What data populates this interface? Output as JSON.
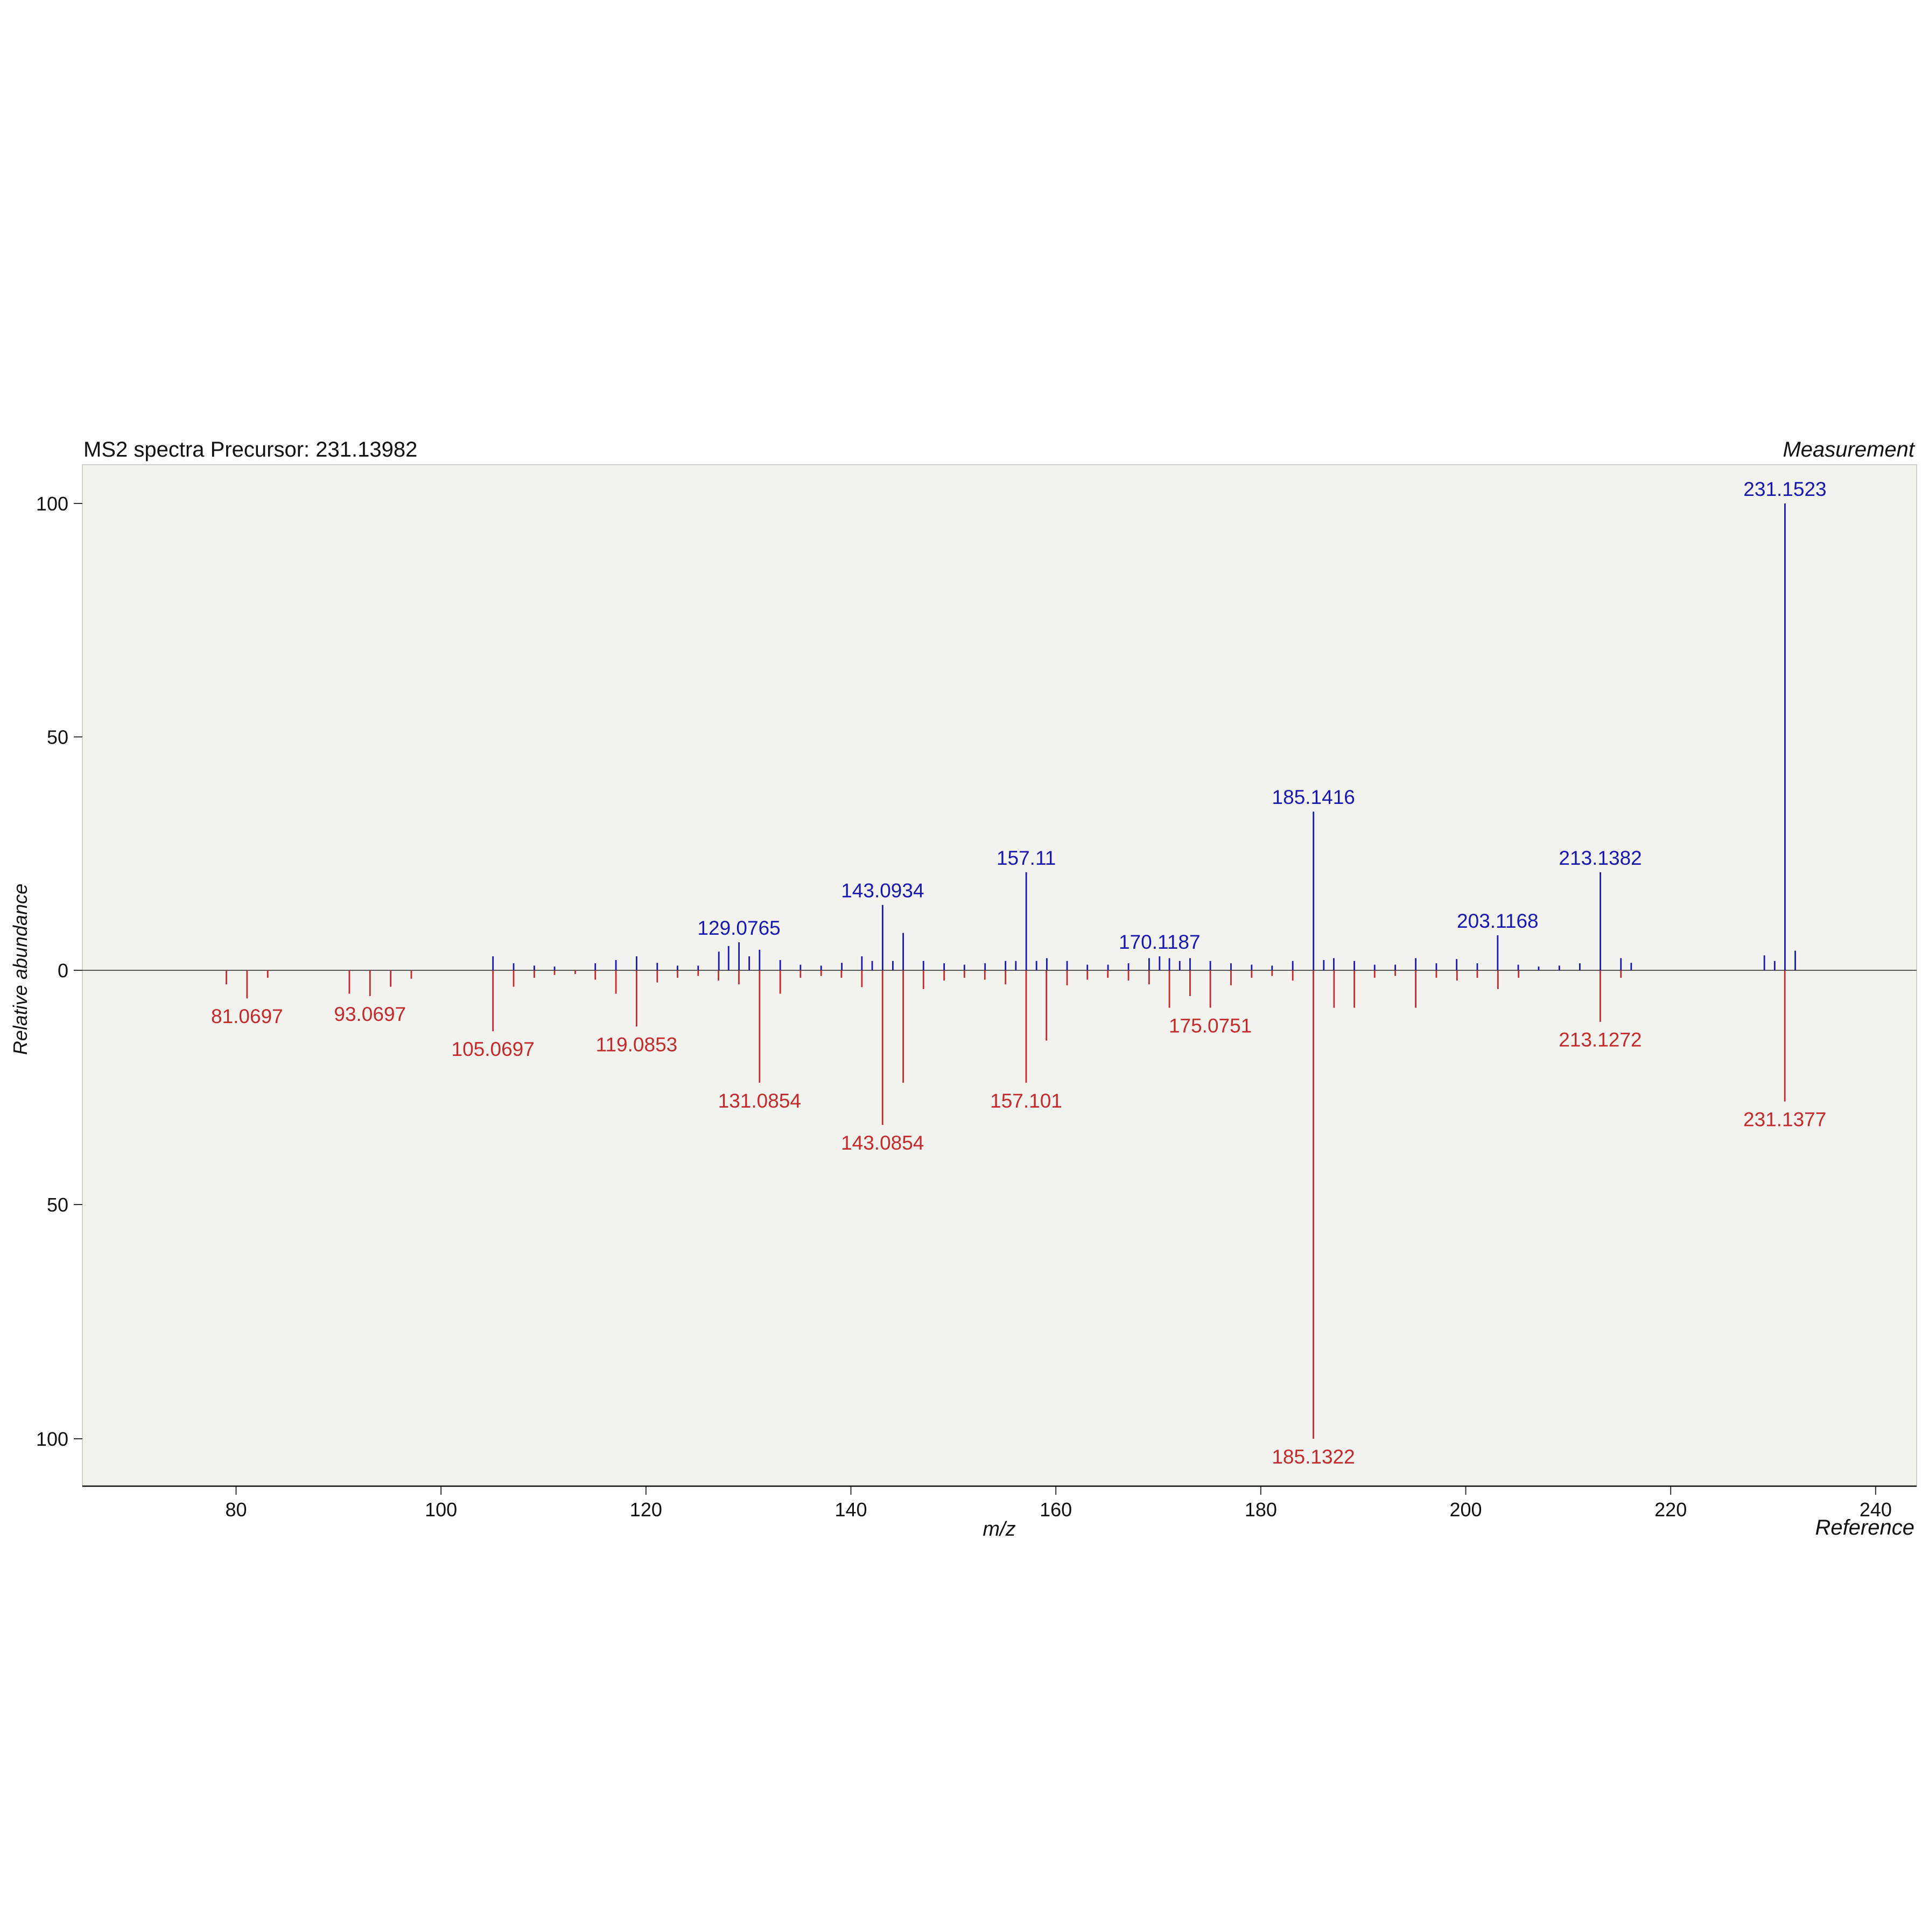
{
  "chart": {
    "title": "MS2 spectra Precursor: 231.13982",
    "top_label": "Measurement",
    "bottom_label": "Reference",
    "xlabel": "m/z",
    "ylabel": "Relative abundance"
  },
  "chart_data": {
    "type": "bar",
    "style": "mirrored stem plot (MS2 head-to-tail mass spectrum)",
    "title": "MS2 spectra Precursor: 231.13982",
    "xlabel": "m/z",
    "ylabel": "Relative abundance",
    "x_range": [
      65,
      244
    ],
    "y_range": [
      -100,
      100
    ],
    "x_ticks": [
      80,
      100,
      120,
      140,
      160,
      180,
      200,
      220,
      240
    ],
    "y_ticks": [
      {
        "value": 100,
        "label": "100"
      },
      {
        "value": 50,
        "label": "50"
      },
      {
        "value": 0,
        "label": "0"
      },
      {
        "value": -50,
        "label": "50"
      },
      {
        "value": -100,
        "label": "100"
      }
    ],
    "grid": false,
    "legend": {
      "top_right": "Measurement",
      "bottom_right": "Reference"
    },
    "colors": {
      "measurement": "#1717b2",
      "reference": "#c42a2a"
    },
    "series": [
      {
        "name": "Measurement",
        "direction": "up",
        "color_key": "measurement",
        "peaks": [
          {
            "mz": 105.07,
            "intensity": 3
          },
          {
            "mz": 107.085,
            "intensity": 1.5
          },
          {
            "mz": 109.101,
            "intensity": 1
          },
          {
            "mz": 111.08,
            "intensity": 0.8
          },
          {
            "mz": 115.054,
            "intensity": 1.5
          },
          {
            "mz": 117.07,
            "intensity": 2.2
          },
          {
            "mz": 119.085,
            "intensity": 3
          },
          {
            "mz": 121.101,
            "intensity": 1.6
          },
          {
            "mz": 123.08,
            "intensity": 1
          },
          {
            "mz": 125.096,
            "intensity": 1
          },
          {
            "mz": 127.112,
            "intensity": 4
          },
          {
            "mz": 128.062,
            "intensity": 5.2
          },
          {
            "mz": 129.0765,
            "intensity": 6,
            "label": "129.0765"
          },
          {
            "mz": 130.078,
            "intensity": 3
          },
          {
            "mz": 131.085,
            "intensity": 4.4
          },
          {
            "mz": 133.101,
            "intensity": 2.2
          },
          {
            "mz": 135.08,
            "intensity": 1.2
          },
          {
            "mz": 137.096,
            "intensity": 1
          },
          {
            "mz": 139.112,
            "intensity": 1.6
          },
          {
            "mz": 141.07,
            "intensity": 3
          },
          {
            "mz": 142.078,
            "intensity": 2
          },
          {
            "mz": 143.0934,
            "intensity": 14,
            "label": "143.0934"
          },
          {
            "mz": 144.093,
            "intensity": 2
          },
          {
            "mz": 145.101,
            "intensity": 8
          },
          {
            "mz": 147.08,
            "intensity": 2
          },
          {
            "mz": 149.096,
            "intensity": 1.5
          },
          {
            "mz": 151.075,
            "intensity": 1.2
          },
          {
            "mz": 153.091,
            "intensity": 1.5
          },
          {
            "mz": 155.086,
            "intensity": 2
          },
          {
            "mz": 156.093,
            "intensity": 2
          },
          {
            "mz": 157.11,
            "intensity": 21,
            "label": "157.11"
          },
          {
            "mz": 158.109,
            "intensity": 2
          },
          {
            "mz": 159.117,
            "intensity": 2.6
          },
          {
            "mz": 161.096,
            "intensity": 2
          },
          {
            "mz": 163.075,
            "intensity": 1.2
          },
          {
            "mz": 165.091,
            "intensity": 1.2
          },
          {
            "mz": 167.086,
            "intensity": 1.5
          },
          {
            "mz": 169.101,
            "intensity": 2.6
          },
          {
            "mz": 170.1187,
            "intensity": 3,
            "label": "170.1187"
          },
          {
            "mz": 171.08,
            "intensity": 2.6
          },
          {
            "mz": 172.088,
            "intensity": 2
          },
          {
            "mz": 173.096,
            "intensity": 2.6
          },
          {
            "mz": 175.075,
            "intensity": 2
          },
          {
            "mz": 177.091,
            "intensity": 1.5
          },
          {
            "mz": 179.107,
            "intensity": 1.2
          },
          {
            "mz": 181.101,
            "intensity": 1
          },
          {
            "mz": 183.117,
            "intensity": 2
          },
          {
            "mz": 185.1416,
            "intensity": 34,
            "label": "185.1416"
          },
          {
            "mz": 186.145,
            "intensity": 2.2
          },
          {
            "mz": 187.123,
            "intensity": 2.6
          },
          {
            "mz": 189.127,
            "intensity": 2
          },
          {
            "mz": 191.107,
            "intensity": 1.2
          },
          {
            "mz": 193.122,
            "intensity": 1.2
          },
          {
            "mz": 195.117,
            "intensity": 2.6
          },
          {
            "mz": 197.132,
            "intensity": 1.5
          },
          {
            "mz": 199.112,
            "intensity": 2.4
          },
          {
            "mz": 201.127,
            "intensity": 1.5
          },
          {
            "mz": 203.1168,
            "intensity": 7.5,
            "label": "203.1168"
          },
          {
            "mz": 205.122,
            "intensity": 1.2
          },
          {
            "mz": 207.117,
            "intensity": 0.8
          },
          {
            "mz": 209.132,
            "intensity": 1
          },
          {
            "mz": 211.133,
            "intensity": 1.5
          },
          {
            "mz": 213.1382,
            "intensity": 21,
            "label": "213.1382"
          },
          {
            "mz": 215.143,
            "intensity": 2.6
          },
          {
            "mz": 216.148,
            "intensity": 1.6
          },
          {
            "mz": 229.14,
            "intensity": 3.2
          },
          {
            "mz": 230.148,
            "intensity": 2
          },
          {
            "mz": 231.1523,
            "intensity": 100,
            "label": "231.1523"
          },
          {
            "mz": 232.156,
            "intensity": 4.2
          }
        ]
      },
      {
        "name": "Reference",
        "direction": "down",
        "color_key": "reference",
        "peaks": [
          {
            "mz": 79.054,
            "intensity": 3
          },
          {
            "mz": 81.0697,
            "intensity": 6,
            "label": "81.0697"
          },
          {
            "mz": 83.086,
            "intensity": 1.6
          },
          {
            "mz": 91.054,
            "intensity": 5
          },
          {
            "mz": 93.0697,
            "intensity": 5.5,
            "label": "93.0697"
          },
          {
            "mz": 95.086,
            "intensity": 3.5
          },
          {
            "mz": 97.101,
            "intensity": 1.8
          },
          {
            "mz": 105.0697,
            "intensity": 13,
            "label": "105.0697"
          },
          {
            "mz": 107.086,
            "intensity": 3.5
          },
          {
            "mz": 109.101,
            "intensity": 1.6
          },
          {
            "mz": 111.08,
            "intensity": 1
          },
          {
            "mz": 113.096,
            "intensity": 0.8
          },
          {
            "mz": 115.054,
            "intensity": 2
          },
          {
            "mz": 117.07,
            "intensity": 5
          },
          {
            "mz": 119.0853,
            "intensity": 12,
            "label": "119.0853"
          },
          {
            "mz": 121.101,
            "intensity": 2.6
          },
          {
            "mz": 123.08,
            "intensity": 1.6
          },
          {
            "mz": 125.096,
            "intensity": 1.2
          },
          {
            "mz": 127.08,
            "intensity": 2.2
          },
          {
            "mz": 129.07,
            "intensity": 3
          },
          {
            "mz": 131.0854,
            "intensity": 24,
            "label": "131.0854"
          },
          {
            "mz": 133.101,
            "intensity": 5
          },
          {
            "mz": 135.08,
            "intensity": 1.6
          },
          {
            "mz": 137.096,
            "intensity": 1.2
          },
          {
            "mz": 139.075,
            "intensity": 1.6
          },
          {
            "mz": 141.07,
            "intensity": 3.6
          },
          {
            "mz": 143.0854,
            "intensity": 33,
            "label": "143.0854"
          },
          {
            "mz": 145.101,
            "intensity": 24
          },
          {
            "mz": 147.08,
            "intensity": 4
          },
          {
            "mz": 149.096,
            "intensity": 2.2
          },
          {
            "mz": 151.075,
            "intensity": 1.6
          },
          {
            "mz": 153.07,
            "intensity": 2
          },
          {
            "mz": 155.086,
            "intensity": 3
          },
          {
            "mz": 157.101,
            "intensity": 24,
            "label": "157.101"
          },
          {
            "mz": 159.08,
            "intensity": 15
          },
          {
            "mz": 161.096,
            "intensity": 3.2
          },
          {
            "mz": 163.075,
            "intensity": 2
          },
          {
            "mz": 165.07,
            "intensity": 1.6
          },
          {
            "mz": 167.086,
            "intensity": 2.2
          },
          {
            "mz": 169.101,
            "intensity": 3
          },
          {
            "mz": 171.08,
            "intensity": 8
          },
          {
            "mz": 173.096,
            "intensity": 5.5
          },
          {
            "mz": 175.0751,
            "intensity": 8,
            "label": "175.0751"
          },
          {
            "mz": 177.091,
            "intensity": 3.2
          },
          {
            "mz": 179.107,
            "intensity": 1.6
          },
          {
            "mz": 181.101,
            "intensity": 1.2
          },
          {
            "mz": 183.117,
            "intensity": 2.2
          },
          {
            "mz": 185.1322,
            "intensity": 100,
            "label": "185.1322"
          },
          {
            "mz": 187.148,
            "intensity": 8
          },
          {
            "mz": 189.127,
            "intensity": 8
          },
          {
            "mz": 191.107,
            "intensity": 1.6
          },
          {
            "mz": 193.122,
            "intensity": 1.2
          },
          {
            "mz": 195.117,
            "intensity": 8
          },
          {
            "mz": 197.132,
            "intensity": 1.6
          },
          {
            "mz": 199.148,
            "intensity": 2.2
          },
          {
            "mz": 201.127,
            "intensity": 1.6
          },
          {
            "mz": 203.143,
            "intensity": 4
          },
          {
            "mz": 205.158,
            "intensity": 1.6
          },
          {
            "mz": 213.1272,
            "intensity": 11,
            "label": "213.1272"
          },
          {
            "mz": 215.143,
            "intensity": 1.6
          },
          {
            "mz": 231.1377,
            "intensity": 28,
            "label": "231.1377"
          }
        ]
      }
    ]
  }
}
